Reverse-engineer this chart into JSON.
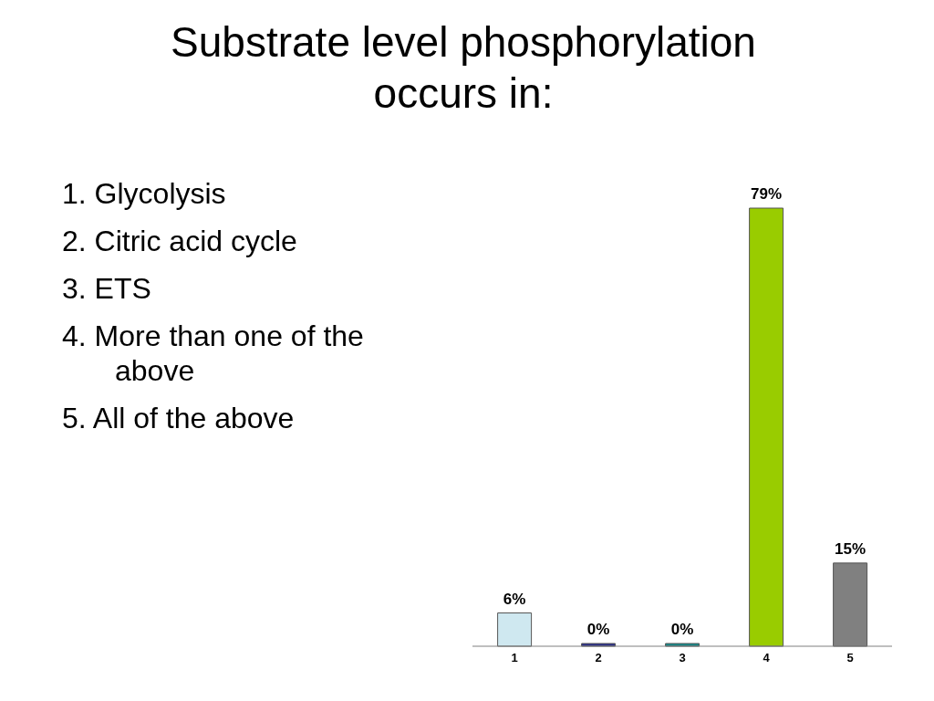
{
  "chart_data": {
    "type": "bar",
    "title": "Substrate level phosphorylation occurs in:",
    "categories": [
      "1",
      "2",
      "3",
      "4",
      "5"
    ],
    "values": [
      6,
      0,
      0,
      79,
      15
    ],
    "colors": [
      "#cfe8f0",
      "#2b2f8a",
      "#138a8a",
      "#99cc00",
      "#808080"
    ],
    "value_labels": [
      "6%",
      "0%",
      "0%",
      "79%",
      "15%"
    ],
    "annotations": [
      "1. Glycolysis",
      "2. Citric acid cycle",
      "3. ETS",
      "4. More than one of the above",
      "5. All of the above"
    ]
  }
}
